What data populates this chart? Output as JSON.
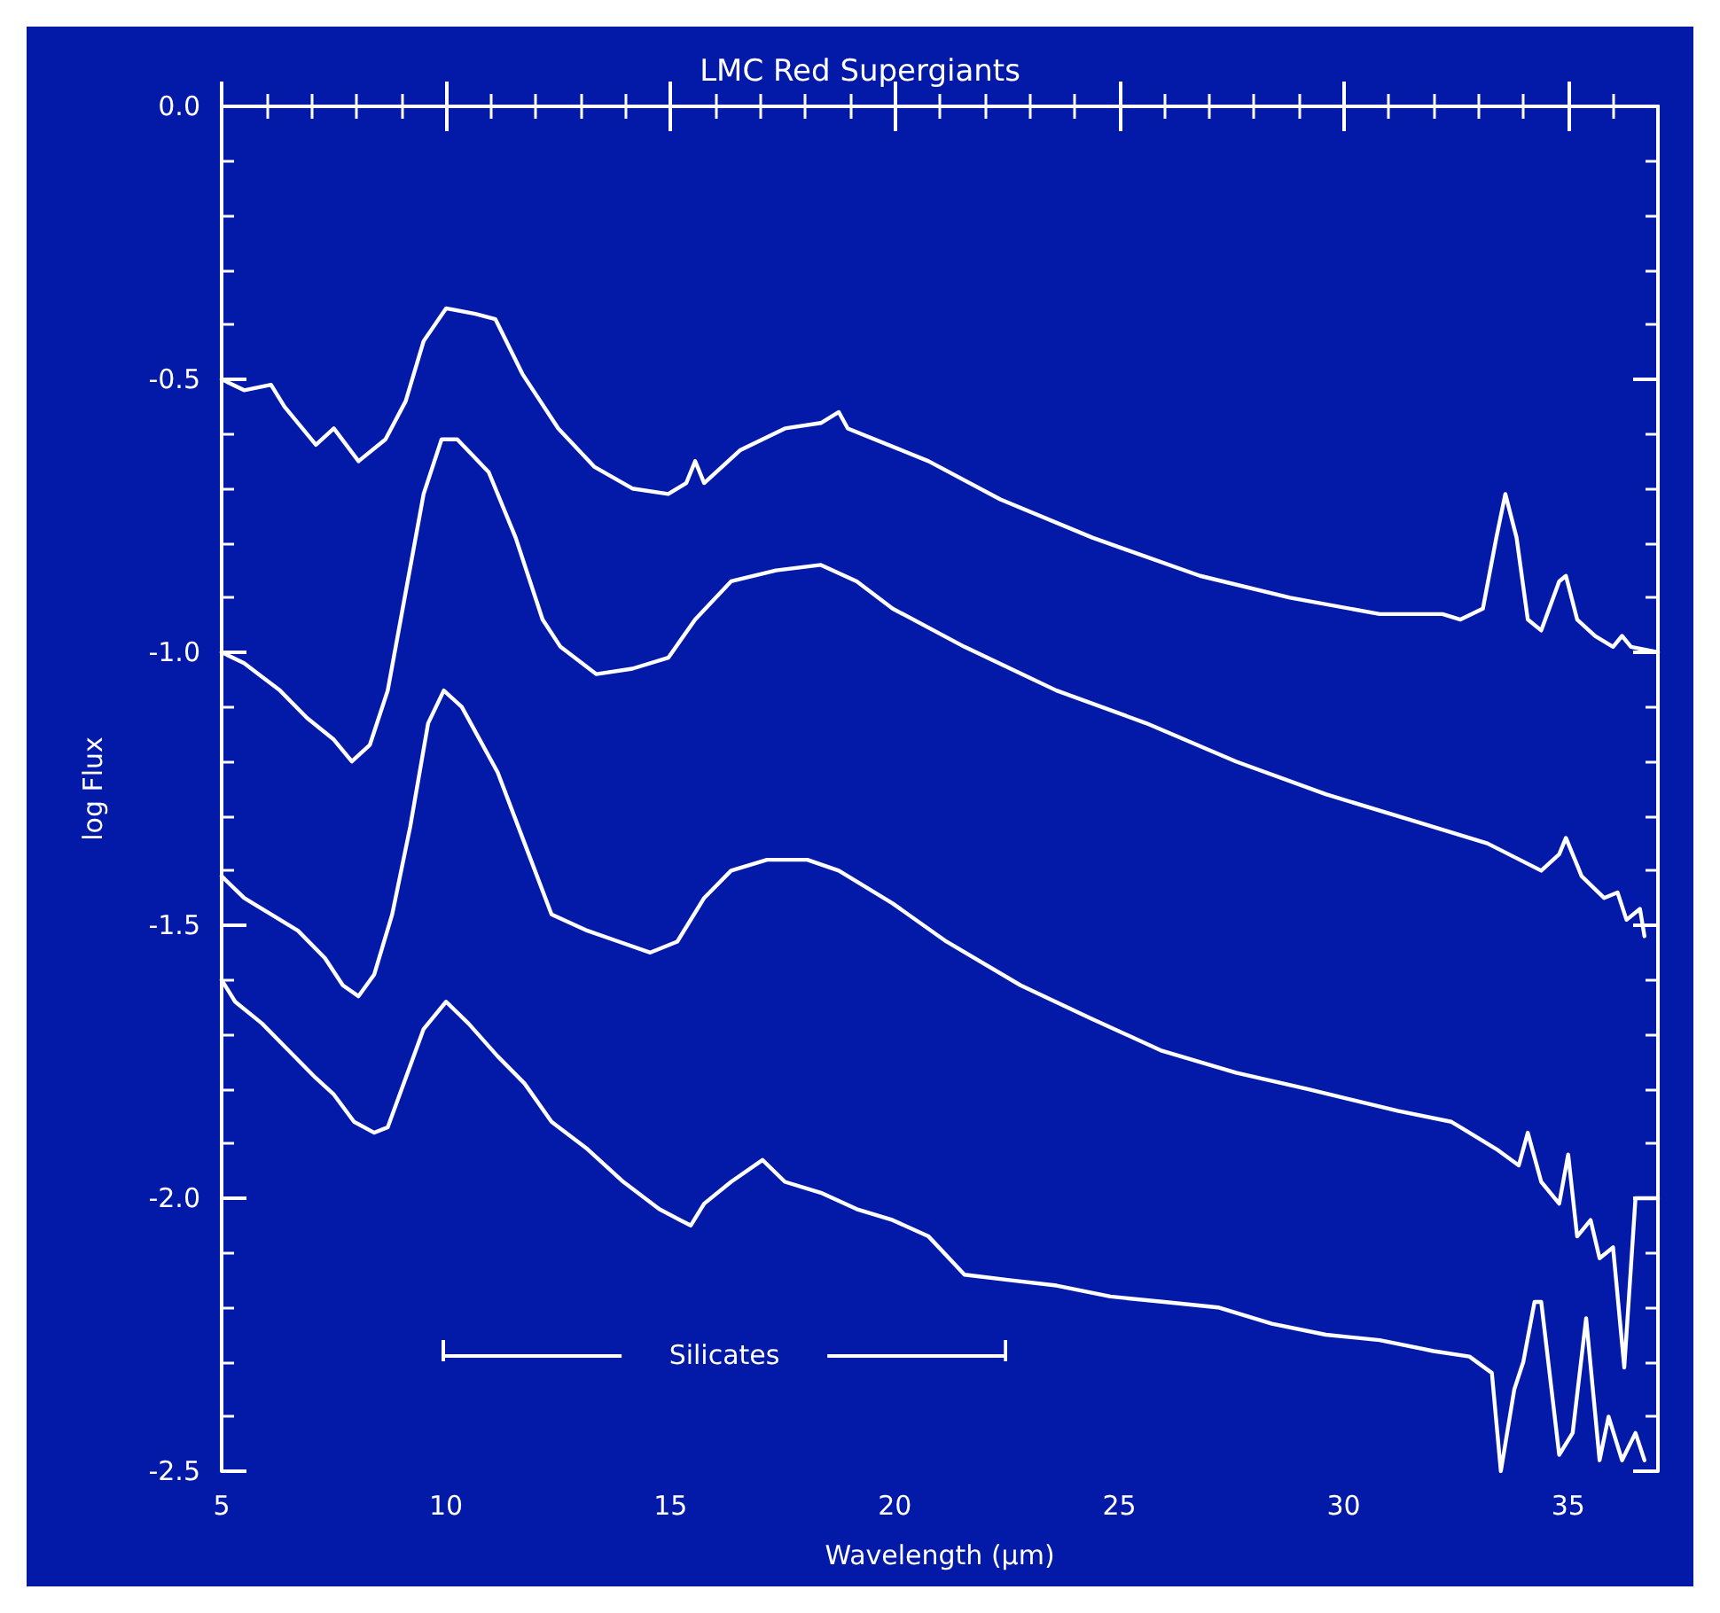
{
  "chart_data": {
    "type": "line",
    "title": "LMC Red Supergiants",
    "xlabel": "Wavelength (μm)",
    "ylabel": "log Flux",
    "xlim": [
      5,
      37
    ],
    "xticks": [
      5,
      10,
      15,
      20,
      25,
      30,
      35
    ],
    "ylim": [
      -2.5,
      0
    ],
    "yticks": [
      {
        "value": 0,
        "label": "0.0"
      },
      -0.5,
      {
        "value": -1,
        "label": "-1.0"
      },
      -1.5,
      {
        "value": -2,
        "label": "-2.0"
      },
      -2.5
    ],
    "grid": false,
    "marker": "none",
    "line_style": "solid",
    "annotations": [
      "Silicates"
    ],
    "series": [
      {
        "color": "#ffffff",
        "x": [
          5,
          5.5,
          6.1,
          6.4,
          7.1,
          7.5,
          8.05,
          8.65,
          9.1,
          9.5,
          10,
          10.65,
          11.1,
          11.7,
          12.5,
          13.3,
          14.15,
          14.95,
          15.35,
          15.55,
          15.75,
          16.55,
          17.55,
          18.35,
          18.75,
          18.95,
          20.75,
          22.35,
          24.4,
          26.8,
          28.8,
          30.8,
          32.2,
          32.6,
          33.1,
          33.4,
          33.6,
          33.85,
          34.1,
          34.4,
          34.8,
          34.95,
          35.2,
          35.6,
          36,
          36.2,
          36.4,
          37
        ],
        "values": [
          -0.5,
          -0.52,
          -0.51,
          -0.55,
          -0.62,
          -0.59,
          -0.65,
          -0.61,
          -0.54,
          -0.43,
          -0.37,
          -0.38,
          -0.39,
          -0.49,
          -0.59,
          -0.66,
          -0.7,
          -0.71,
          -0.69,
          -0.65,
          -0.69,
          -0.63,
          -0.59,
          -0.58,
          -0.56,
          -0.59,
          -0.65,
          -0.72,
          -0.79,
          -0.86,
          -0.9,
          -0.93,
          -0.93,
          -0.94,
          -0.92,
          -0.79,
          -0.71,
          -0.79,
          -0.94,
          -0.96,
          -0.87,
          -0.86,
          -0.94,
          -0.97,
          -0.99,
          -0.97,
          -0.99,
          -1.0
        ]
      },
      {
        "color": "#ffffff",
        "x": [
          5,
          5.5,
          6.3,
          6.9,
          7.5,
          7.9,
          8.3,
          8.7,
          9.1,
          9.5,
          9.9,
          10.25,
          10.95,
          11.55,
          12.15,
          12.55,
          13.35,
          14.15,
          14.95,
          15.55,
          16.35,
          17.35,
          18.35,
          19.15,
          19.95,
          21.55,
          23.6,
          25.6,
          27.6,
          29.6,
          31.6,
          33.2,
          34.4,
          34.8,
          34.95,
          35.3,
          35.8,
          36.1,
          36.3,
          36.6,
          36.7
        ],
        "values": [
          -1.0,
          -1.02,
          -1.07,
          -1.12,
          -1.16,
          -1.2,
          -1.17,
          -1.07,
          -0.89,
          -0.71,
          -0.61,
          -0.61,
          -0.67,
          -0.79,
          -0.94,
          -0.99,
          -1.04,
          -1.03,
          -1.01,
          -0.94,
          -0.87,
          -0.85,
          -0.84,
          -0.87,
          -0.92,
          -0.99,
          -1.07,
          -1.13,
          -1.2,
          -1.26,
          -1.31,
          -1.35,
          -1.4,
          -1.37,
          -1.34,
          -1.41,
          -1.45,
          -1.44,
          -1.49,
          -1.47,
          -1.52
        ]
      },
      {
        "color": "#ffffff",
        "x": [
          5,
          5.5,
          6.1,
          6.7,
          7.3,
          7.7,
          8.05,
          8.4,
          8.8,
          9.2,
          9.6,
          9.95,
          10.35,
          11.15,
          11.75,
          12.35,
          13.15,
          13.85,
          14.55,
          15.15,
          15.75,
          16.35,
          17.15,
          18.05,
          18.75,
          19.95,
          21.15,
          22.8,
          24.35,
          25.95,
          27.6,
          29.2,
          31.2,
          32.4,
          33.4,
          33.9,
          34.1,
          34.4,
          34.8,
          35,
          35.2,
          35.5,
          35.7,
          36,
          36.25,
          36.5,
          37
        ],
        "values": [
          -1.41,
          -1.45,
          -1.48,
          -1.51,
          -1.56,
          -1.61,
          -1.63,
          -1.59,
          -1.48,
          -1.32,
          -1.13,
          -1.07,
          -1.1,
          -1.22,
          -1.35,
          -1.48,
          -1.51,
          -1.53,
          -1.55,
          -1.53,
          -1.45,
          -1.4,
          -1.38,
          -1.38,
          -1.4,
          -1.46,
          -1.53,
          -1.61,
          -1.67,
          -1.73,
          -1.77,
          -1.8,
          -1.84,
          -1.86,
          -1.91,
          -1.94,
          -1.88,
          -1.97,
          -2.01,
          -1.92,
          -2.07,
          -2.04,
          -2.11,
          -2.09,
          -2.31,
          -2.0,
          -2.0
        ]
      },
      {
        "color": "#ffffff",
        "x": [
          5,
          5.3,
          5.9,
          6.5,
          7.1,
          7.5,
          7.95,
          8.4,
          8.7,
          9.1,
          9.5,
          10,
          10.5,
          11.15,
          11.75,
          12.35,
          13.15,
          13.95,
          14.75,
          15.45,
          15.75,
          16.35,
          17.05,
          17.55,
          18.35,
          19.15,
          19.95,
          20.75,
          21.55,
          22.55,
          23.6,
          24.8,
          26,
          27.2,
          28.4,
          29.6,
          30.8,
          32,
          32.8,
          33.3,
          33.5,
          33.8,
          34,
          34.25,
          34.4,
          34.8,
          35.1,
          35.4,
          35.7,
          35.9,
          36.2,
          36.5,
          36.7
        ],
        "values": [
          -1.6,
          -1.64,
          -1.68,
          -1.73,
          -1.78,
          -1.81,
          -1.86,
          -1.88,
          -1.87,
          -1.78,
          -1.69,
          -1.64,
          -1.68,
          -1.74,
          -1.79,
          -1.86,
          -1.91,
          -1.97,
          -2.02,
          -2.05,
          -2.01,
          -1.97,
          -1.93,
          -1.97,
          -1.99,
          -2.02,
          -2.04,
          -2.07,
          -2.14,
          -2.15,
          -2.16,
          -2.18,
          -2.19,
          -2.2,
          -2.23,
          -2.25,
          -2.26,
          -2.28,
          -2.29,
          -2.32,
          -2.5,
          -2.35,
          -2.3,
          -2.19,
          -2.19,
          -2.47,
          -2.43,
          -2.22,
          -2.48,
          -2.4,
          -2.48,
          -2.43,
          -2.48
        ]
      }
    ]
  }
}
